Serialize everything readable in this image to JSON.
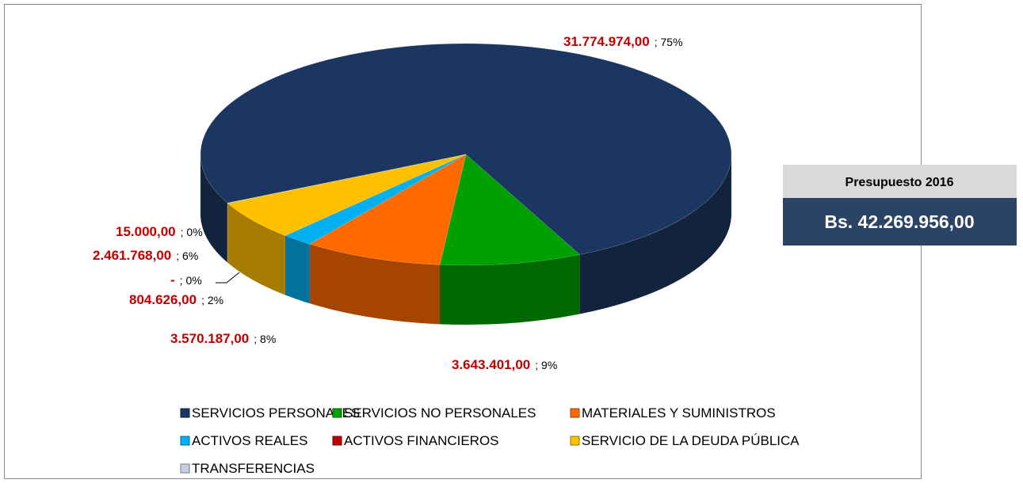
{
  "chart_data": {
    "type": "pie3d",
    "categories": [
      "SERVICIOS PERSONALES",
      "SERVICIOS NO PERSONALES",
      "MATERIALES Y SUMINISTROS",
      "ACTIVOS REALES",
      "ACTIVOS FINANCIEROS",
      "SERVICIO DE LA DEUDA PÚBLICA",
      "TRANSFERENCIAS"
    ],
    "values": [
      31774974,
      3643401,
      3570187,
      804626,
      0,
      2461768,
      15000
    ],
    "value_labels": [
      "31.774.974,00",
      "3.643.401,00",
      "3.570.187,00",
      "804.626,00",
      "-",
      "2.461.768,00",
      "15.000,00"
    ],
    "percents": [
      75,
      9,
      8,
      2,
      0,
      6,
      0
    ],
    "percent_labels": [
      "; 75%",
      "; 9%",
      "; 8%",
      "; 2%",
      "; 0%",
      "; 6%",
      "; 0%"
    ],
    "colors": [
      "#1b3660",
      "#00a000",
      "#ff6a00",
      "#00b0f0",
      "#c00000",
      "#ffc000",
      "#c6d0e2"
    ],
    "legend": "bottom"
  },
  "summary": {
    "title": "Presupuesto 2016",
    "value": 42269956,
    "value_label": "Bs. 42.269.956,00"
  }
}
